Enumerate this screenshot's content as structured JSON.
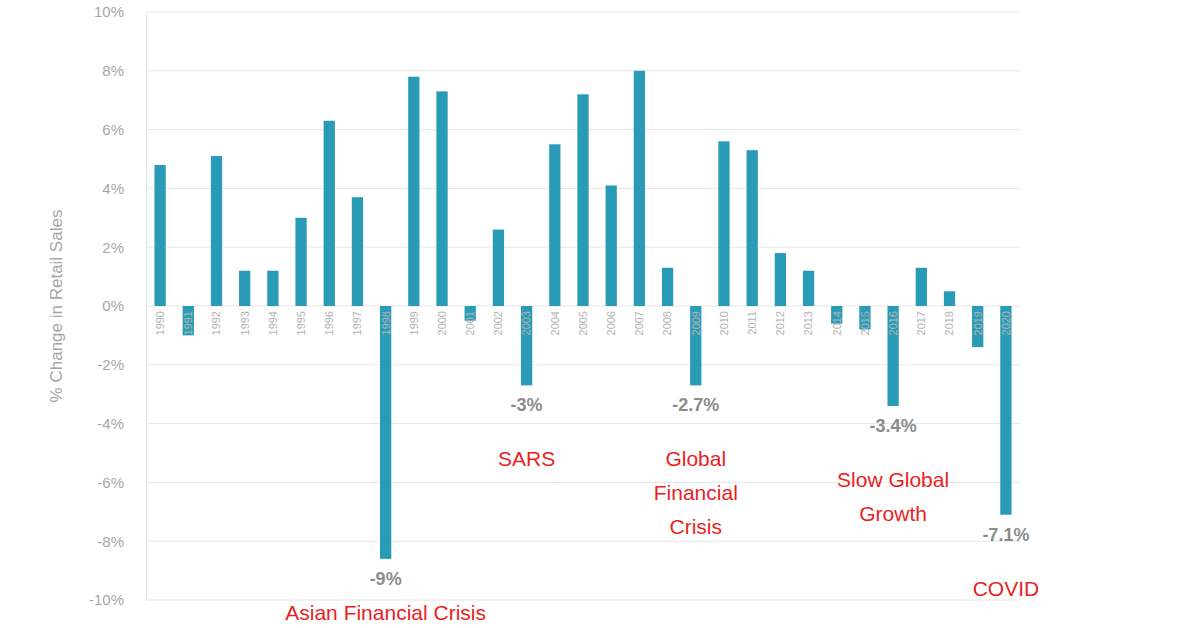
{
  "chart_data": {
    "type": "bar",
    "y_label": "% Change in Retail Sales",
    "categories": [
      "1990",
      "1991",
      "1992",
      "1993",
      "1994",
      "1995",
      "1996",
      "1997",
      "1998",
      "1999",
      "2000",
      "2001",
      "2002",
      "2003",
      "2004",
      "2005",
      "2006",
      "2007",
      "2008",
      "2009",
      "2010",
      "2011",
      "2012",
      "2013",
      "2014",
      "2015",
      "2016",
      "2017",
      "2018",
      "2019",
      "2020"
    ],
    "values": [
      4.8,
      -1.0,
      5.1,
      1.2,
      1.2,
      3.0,
      6.3,
      3.7,
      -8.6,
      7.8,
      7.3,
      -0.5,
      2.6,
      -2.7,
      5.5,
      7.2,
      4.1,
      8.0,
      1.3,
      -2.7,
      5.6,
      5.3,
      1.8,
      1.2,
      -0.6,
      -0.8,
      -3.4,
      1.3,
      0.5,
      -1.4,
      -7.1
    ],
    "value_labels": [
      null,
      null,
      null,
      null,
      null,
      null,
      null,
      null,
      "-9%",
      null,
      null,
      null,
      null,
      "-3%",
      null,
      null,
      null,
      null,
      null,
      "-2.7%",
      null,
      null,
      null,
      null,
      null,
      null,
      "-3.4%",
      null,
      null,
      null,
      "-7.1%"
    ],
    "color": "#2a9bb6",
    "ylim": [
      -10,
      10
    ],
    "yticks": [
      {
        "value": -10,
        "label": "-10%"
      },
      {
        "value": -8,
        "label": "-8%"
      },
      {
        "value": -6,
        "label": "-6%"
      },
      {
        "value": -4,
        "label": "-4%"
      },
      {
        "value": -2,
        "label": "-2%"
      },
      {
        "value": 0,
        "label": "0%"
      },
      {
        "value": 2,
        "label": "2%"
      },
      {
        "value": 4,
        "label": "4%"
      },
      {
        "value": 6,
        "label": "6%"
      },
      {
        "value": 8,
        "label": "8%"
      },
      {
        "value": 10,
        "label": "10%"
      }
    ],
    "grid": true,
    "annotations": [
      {
        "category": "1998",
        "text": [
          "Asian Financial Crisis"
        ]
      },
      {
        "category": "2003",
        "text": [
          "SARS"
        ]
      },
      {
        "category": "2009",
        "text": [
          "Global",
          "Financial",
          "Crisis"
        ]
      },
      {
        "category": "2016",
        "text": [
          "Slow Global",
          "Growth"
        ]
      },
      {
        "category": "2020",
        "text": [
          "COVID"
        ]
      }
    ]
  }
}
